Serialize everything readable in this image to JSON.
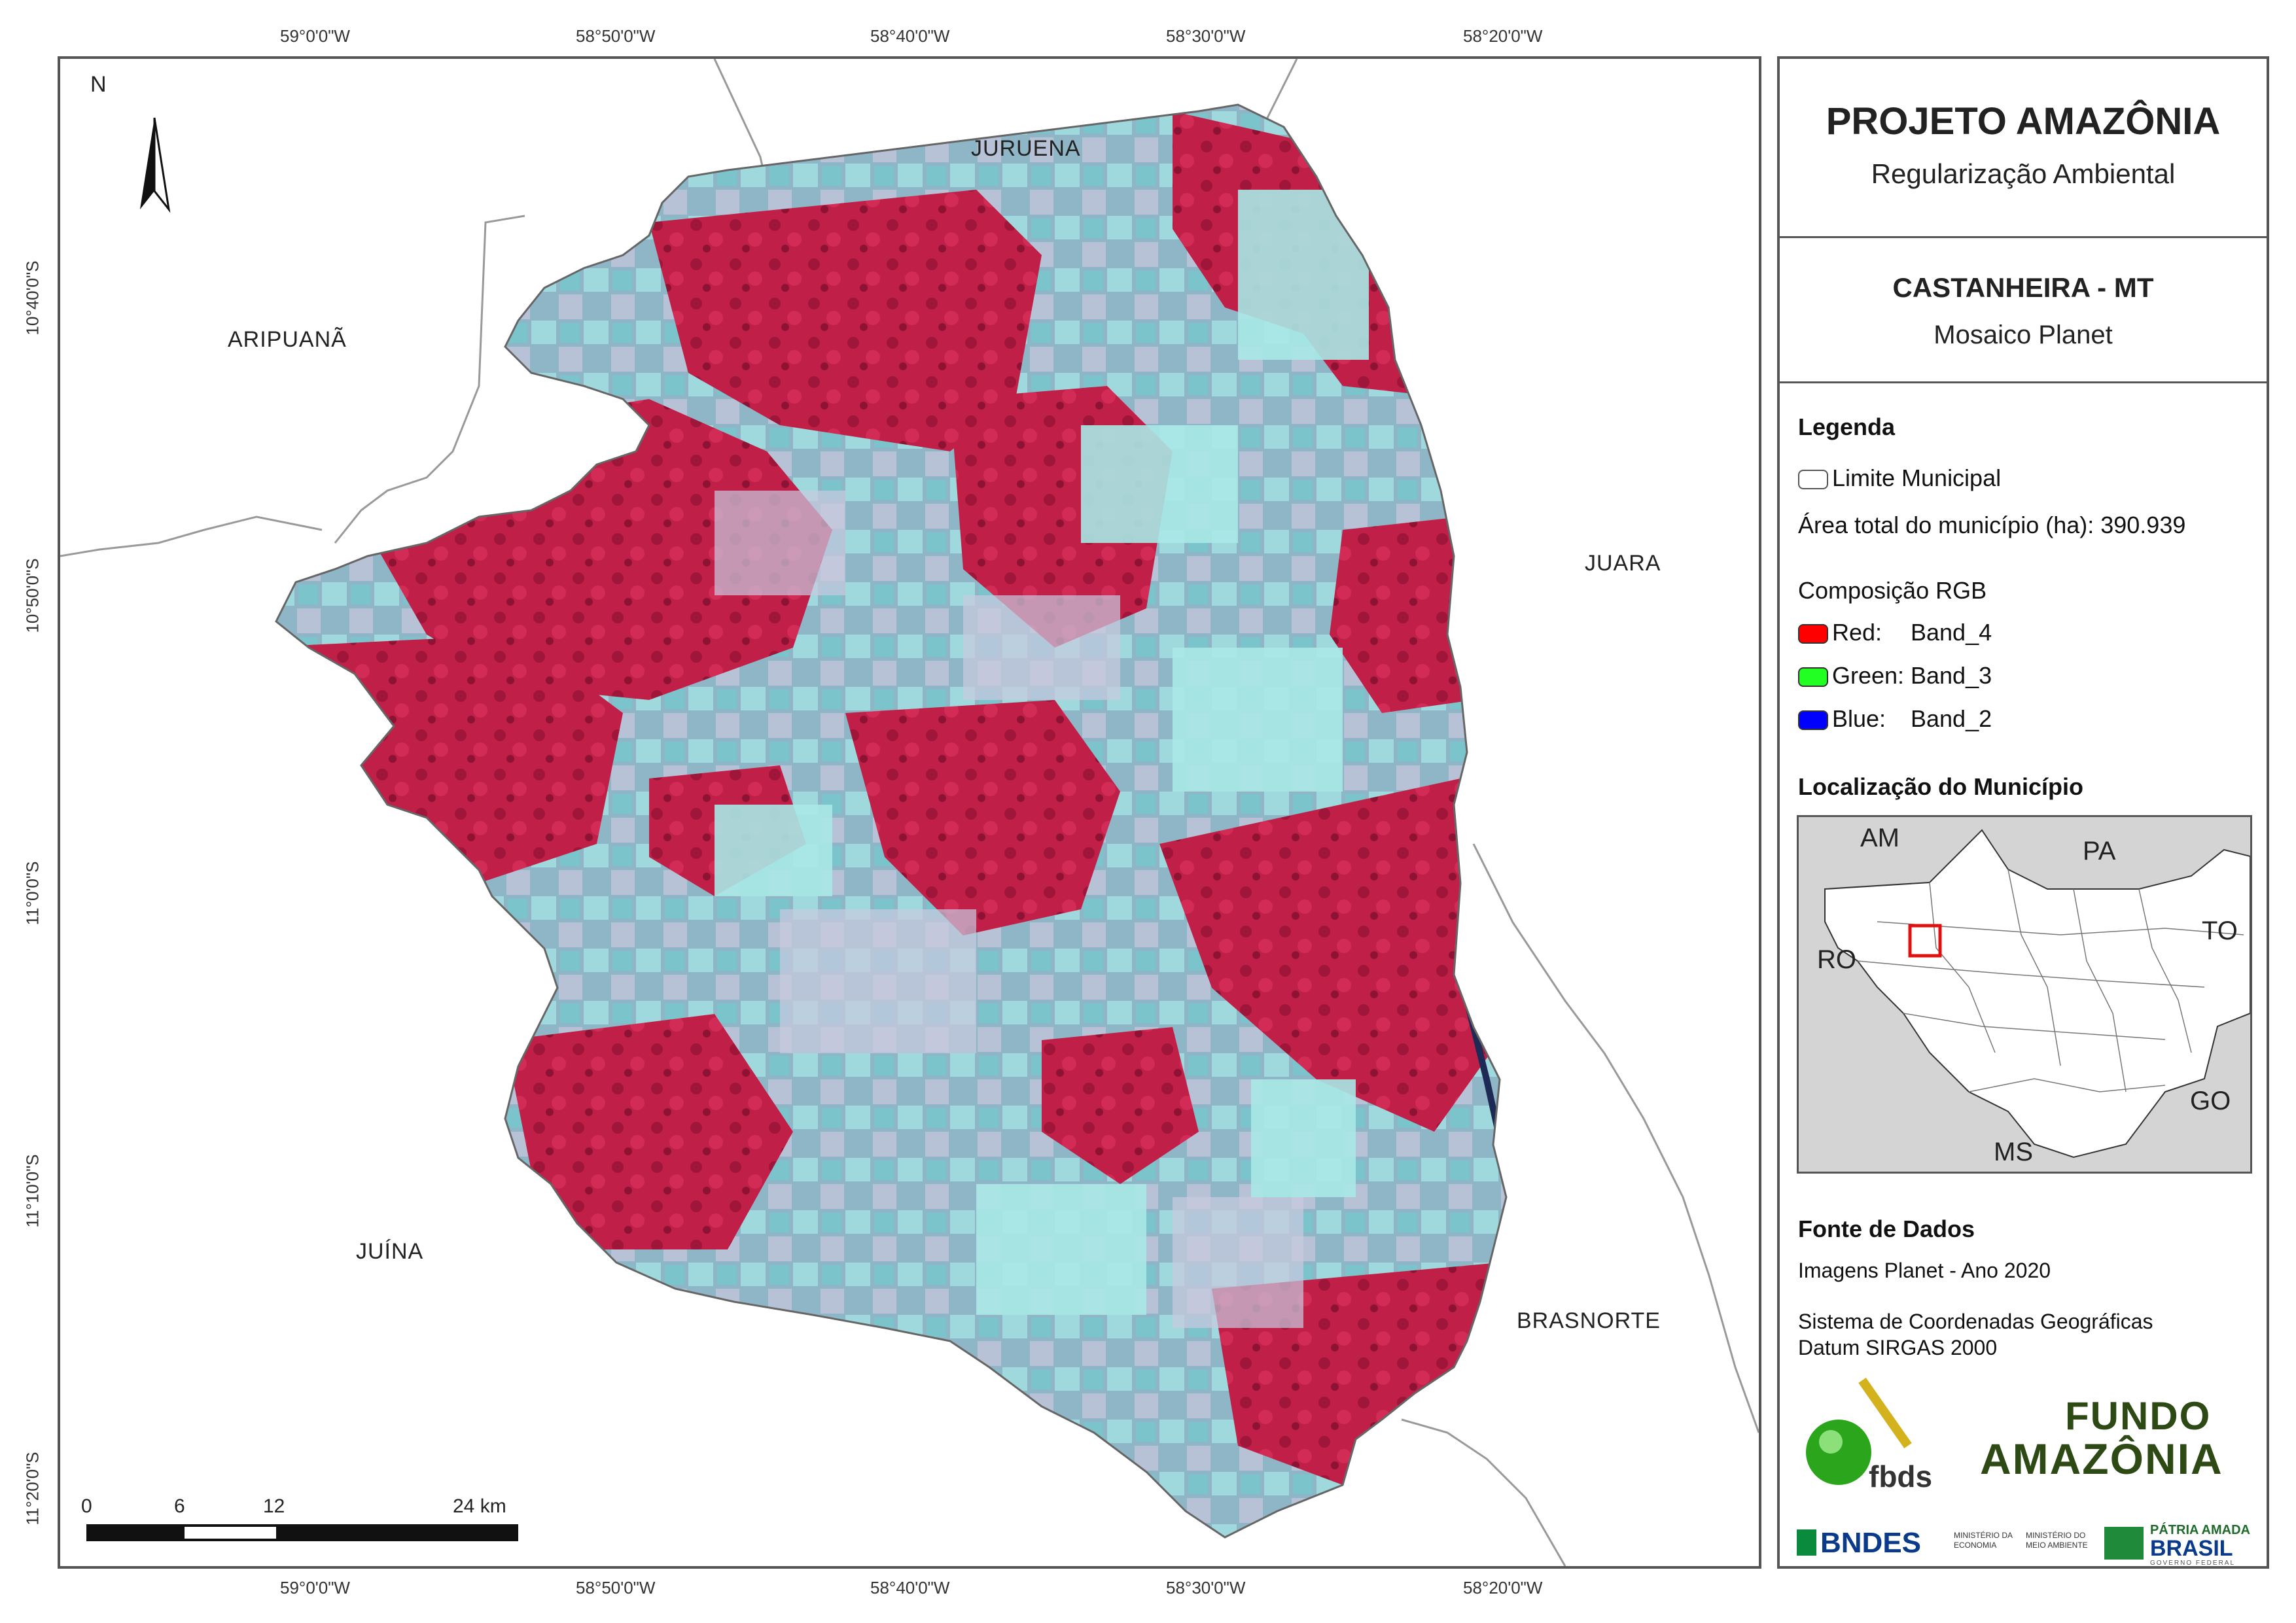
{
  "top_coords": [
    "59°0'0\"W",
    "58°50'0\"W",
    "58°40'0\"W",
    "58°30'0\"W",
    "58°20'0\"W"
  ],
  "bottom_coords": [
    "59°0'0\"W",
    "58°50'0\"W",
    "58°40'0\"W",
    "58°30'0\"W",
    "58°20'0\"W"
  ],
  "left_coords": [
    "10°40'0\"S",
    "10°50'0\"S",
    "11°0'0\"S",
    "11°10'0\"S",
    "11°20'0\"S"
  ],
  "north_label": "N",
  "places": {
    "juruena": "JURUENA",
    "aripuana": "ARIPUANÃ",
    "juara": "JUARA",
    "juina": "JUÍNA",
    "brasnorte": "BRASNORTE"
  },
  "scale": {
    "labels": [
      "0",
      "6",
      "12",
      "24 km"
    ]
  },
  "title": {
    "main": "PROJETO AMAZÔNIA",
    "sub": "Regularização Ambiental"
  },
  "municipality": {
    "name": "CASTANHEIRA - MT",
    "product": "Mosaico Planet"
  },
  "legend": {
    "heading": "Legenda",
    "boundary_label": "Limite Municipal",
    "area_text": "Área total do município (ha): 390.939",
    "rgb_heading": "Composição RGB",
    "bands": [
      {
        "label": "Red:",
        "band": "Band_4",
        "color": "#ff0000"
      },
      {
        "label": "Green:",
        "band": "Band_3",
        "color": "#22ff22"
      },
      {
        "label": "Blue:",
        "band": "Band_2",
        "color": "#0000ff"
      }
    ]
  },
  "location": {
    "heading": "Localização do Município",
    "states": {
      "am": "AM",
      "pa": "PA",
      "ro": "RO",
      "to": "TO",
      "go": "GO",
      "ms": "MS"
    }
  },
  "sources": {
    "heading": "Fonte de Dados",
    "images": "Imagens Planet - Ano 2020",
    "crs_line1": "Sistema de Coordenadas Geográficas",
    "crs_line2": "Datum SIRGAS 2000"
  },
  "logos": {
    "fbds": "fbds",
    "fundo_line1": "FUNDO",
    "fundo_line2": "AMAZÔNIA",
    "bndes": "BNDES",
    "min_economia": "MINISTÉRIO DA ECONOMIA",
    "min_meio": "MINISTÉRIO DO MEIO AMBIENTE",
    "patria_line1": "PÁTRIA AMADA",
    "patria_line2": "BRASIL",
    "gov": "GOVERNO FEDERAL"
  },
  "colors": {
    "vegetation": "#c8204a",
    "cleared": "#7fd6d8",
    "frame": "#555555"
  }
}
